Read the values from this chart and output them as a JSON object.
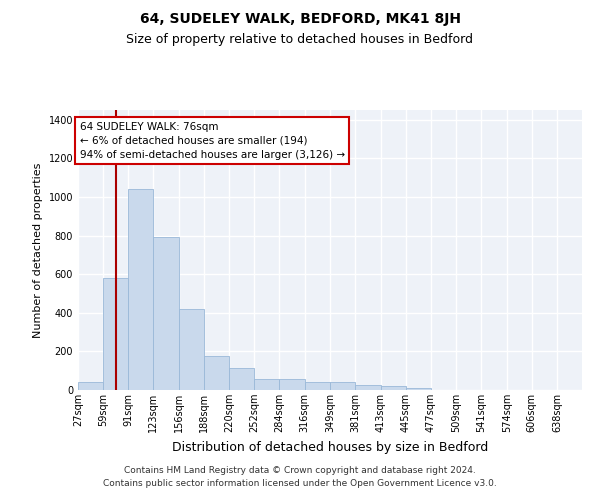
{
  "title": "64, SUDELEY WALK, BEDFORD, MK41 8JH",
  "subtitle": "Size of property relative to detached houses in Bedford",
  "xlabel": "Distribution of detached houses by size in Bedford",
  "ylabel": "Number of detached properties",
  "footer_line1": "Contains HM Land Registry data © Crown copyright and database right 2024.",
  "footer_line2": "Contains public sector information licensed under the Open Government Licence v3.0.",
  "annotation_line1": "64 SUDELEY WALK: 76sqm",
  "annotation_line2": "← 6% of detached houses are smaller (194)",
  "annotation_line3": "94% of semi-detached houses are larger (3,126) →",
  "bar_color": "#c9d9ec",
  "bar_edge_color": "#9ab8d8",
  "red_line_color": "#aa0000",
  "red_line_x": 76,
  "bins": [
    27,
    59,
    91,
    123,
    156,
    188,
    220,
    252,
    284,
    316,
    349,
    381,
    413,
    445,
    477,
    509,
    541,
    574,
    606,
    638,
    670
  ],
  "bar_heights": [
    40,
    580,
    1040,
    790,
    420,
    175,
    115,
    58,
    58,
    40,
    40,
    25,
    20,
    8,
    0,
    0,
    0,
    0,
    0,
    0
  ],
  "ylim": [
    0,
    1450
  ],
  "yticks": [
    0,
    200,
    400,
    600,
    800,
    1000,
    1200,
    1400
  ],
  "background_color": "#eef2f8",
  "grid_color": "#ffffff",
  "fig_background": "#ffffff",
  "annotation_box_facecolor": "#ffffff",
  "annotation_box_edgecolor": "#cc0000",
  "title_fontsize": 10,
  "subtitle_fontsize": 9,
  "ylabel_fontsize": 8,
  "xlabel_fontsize": 9,
  "tick_fontsize": 7,
  "footer_fontsize": 6.5,
  "annotation_fontsize": 7.5
}
